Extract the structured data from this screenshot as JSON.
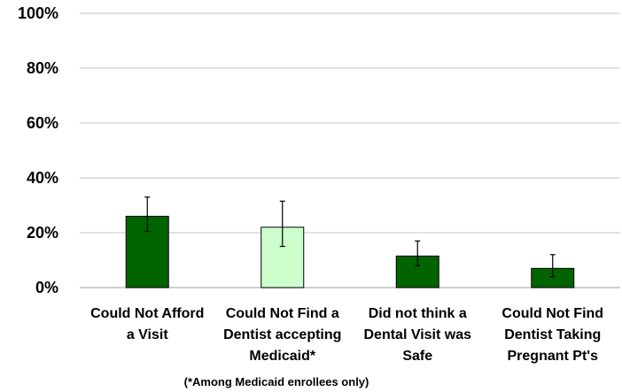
{
  "chart_data": {
    "type": "bar",
    "categories": [
      [
        "Could Not Afford",
        "a Visit"
      ],
      [
        "Could Not Find a",
        "Dentist accepting",
        "Medicaid*"
      ],
      [
        "Did not think a",
        "Dental Visit was",
        "Safe"
      ],
      [
        "Could Not Find",
        "Dentist Taking",
        "Pregnant Pt's"
      ]
    ],
    "values": [
      26,
      22,
      11.5,
      7
    ],
    "error_low": [
      20.5,
      15,
      8,
      4
    ],
    "error_high": [
      33,
      31.5,
      17,
      12
    ],
    "bar_colors": [
      "#006400",
      "#ccffcc",
      "#006400",
      "#006400"
    ],
    "bar_stroke": "#000000",
    "ylim": [
      0,
      100
    ],
    "yticks": [
      0,
      20,
      40,
      60,
      80,
      100
    ],
    "ytick_labels": [
      "0%",
      "20%",
      "40%",
      "60%",
      "80%",
      "100%"
    ],
    "grid": true,
    "grid_color": "#d9d9d9",
    "footnote": "(*Among Medicaid enrollees only)"
  }
}
